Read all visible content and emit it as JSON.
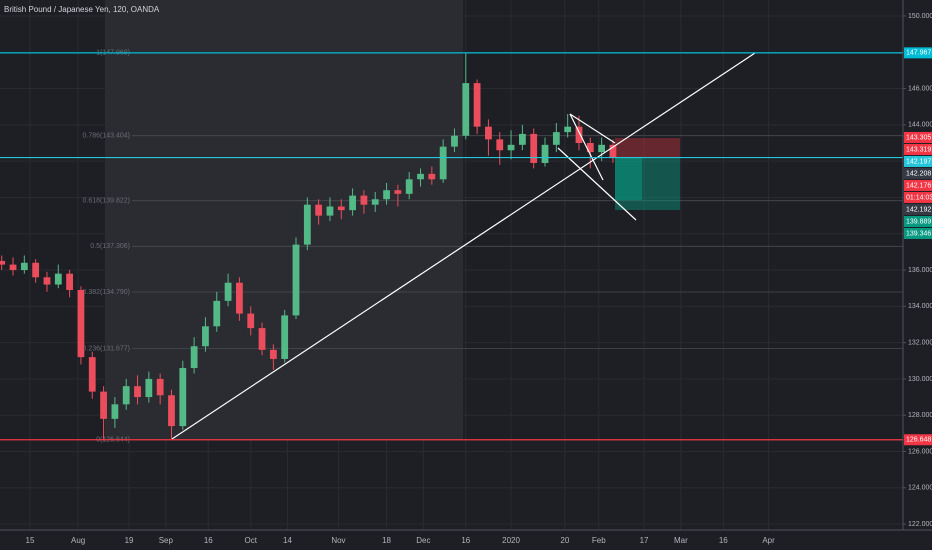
{
  "chart_data": {
    "type": "candlestick",
    "title": "British Pound / Japanese Yen, 120, OANDA",
    "x": [
      186,
      190,
      194,
      198,
      202,
      206,
      210,
      214,
      218,
      222,
      226,
      230,
      234,
      238,
      242,
      246,
      250,
      254,
      258,
      262,
      266,
      270,
      274,
      278,
      282,
      286,
      290,
      294,
      298,
      302,
      306,
      310,
      314,
      318,
      322,
      326,
      330,
      334,
      338,
      342,
      346,
      350,
      354,
      358,
      362,
      366,
      370,
      374,
      378,
      382,
      386,
      390,
      394,
      398,
      402
    ],
    "open": [
      136.5,
      136.3,
      136.0,
      136.4,
      135.6,
      135.2,
      135.8,
      134.9,
      131.2,
      129.3,
      127.8,
      128.6,
      129.6,
      129.0,
      130.0,
      129.1,
      127.4,
      130.6,
      131.8,
      132.9,
      134.3,
      135.3,
      133.6,
      132.8,
      131.6,
      131.1,
      133.5,
      137.4,
      139.6,
      139.0,
      139.5,
      139.3,
      140.1,
      139.6,
      139.9,
      140.4,
      140.2,
      141.0,
      141.3,
      141.0,
      142.8,
      143.4,
      146.3,
      143.9,
      143.2,
      142.6,
      142.9,
      143.5,
      141.9,
      142.9,
      143.6,
      143.9,
      143.0,
      142.5,
      142.9
    ],
    "high": [
      136.8,
      136.7,
      136.8,
      136.6,
      135.9,
      136.3,
      136.0,
      135.1,
      131.5,
      129.6,
      129.0,
      130.0,
      130.2,
      130.4,
      130.3,
      129.4,
      131.0,
      132.3,
      133.4,
      134.8,
      135.8,
      135.6,
      134.0,
      133.1,
      131.9,
      133.8,
      137.8,
      140.0,
      139.9,
      140.0,
      139.9,
      140.5,
      140.4,
      140.3,
      140.8,
      140.7,
      141.4,
      141.6,
      141.7,
      143.2,
      143.8,
      147.96,
      146.5,
      144.3,
      143.6,
      143.7,
      144.0,
      143.8,
      143.3,
      144.1,
      144.6,
      144.5,
      143.3,
      143.3,
      143.2
    ],
    "low": [
      136.0,
      135.7,
      135.8,
      135.3,
      134.8,
      135.0,
      134.5,
      130.8,
      128.9,
      126.6,
      127.3,
      128.3,
      128.6,
      128.7,
      128.6,
      126.7,
      127.2,
      130.3,
      131.5,
      132.6,
      134.0,
      133.2,
      132.4,
      131.3,
      130.5,
      130.9,
      133.3,
      137.1,
      138.5,
      138.7,
      138.8,
      139.0,
      139.1,
      139.2,
      139.6,
      139.5,
      139.9,
      140.6,
      140.7,
      140.8,
      142.5,
      143.2,
      143.5,
      142.3,
      141.8,
      142.1,
      142.6,
      141.6,
      141.7,
      142.5,
      143.3,
      142.6,
      141.6,
      142.0,
      141.9
    ],
    "close": [
      136.3,
      136.0,
      136.4,
      135.6,
      135.2,
      135.8,
      134.9,
      131.2,
      129.3,
      127.8,
      128.6,
      129.6,
      129.0,
      130.0,
      129.1,
      127.4,
      130.6,
      131.8,
      132.9,
      134.3,
      135.3,
      133.6,
      132.8,
      131.6,
      131.1,
      133.5,
      137.4,
      139.6,
      139.0,
      139.5,
      139.3,
      140.1,
      139.6,
      139.9,
      140.4,
      140.2,
      141.0,
      141.3,
      141.0,
      142.8,
      143.4,
      146.3,
      143.9,
      143.2,
      142.6,
      142.9,
      143.5,
      141.9,
      142.9,
      143.6,
      143.9,
      143.0,
      142.5,
      142.9,
      142.2
    ],
    "up_color": "#53b987",
    "down_color": "#eb4d5c",
    "xlim": [
      185.4,
      504.5
    ],
    "ylim": [
      121.95,
      150.88
    ],
    "grid": true,
    "xticks": [
      {
        "value": 196,
        "label": "15"
      },
      {
        "value": 213,
        "label": "Aug"
      },
      {
        "value": 231,
        "label": "19"
      },
      {
        "value": 244,
        "label": "Sep"
      },
      {
        "value": 259,
        "label": "16"
      },
      {
        "value": 274,
        "label": "Oct"
      },
      {
        "value": 287,
        "label": "14"
      },
      {
        "value": 305,
        "label": "Nov"
      },
      {
        "value": 322,
        "label": "18"
      },
      {
        "value": 335,
        "label": "Dec"
      },
      {
        "value": 350,
        "label": "16"
      },
      {
        "value": 366,
        "label": "2020"
      },
      {
        "value": 385,
        "label": "20"
      },
      {
        "value": 397,
        "label": "Feb"
      },
      {
        "value": 413,
        "label": "17"
      },
      {
        "value": 426,
        "label": "Mar"
      },
      {
        "value": 441,
        "label": "16"
      },
      {
        "value": 457,
        "label": "Apr"
      }
    ],
    "yticks": [
      {
        "value": 122,
        "label": "122.000"
      },
      {
        "value": 124,
        "label": "124.000"
      },
      {
        "value": 126,
        "label": "126.000"
      },
      {
        "value": 128,
        "label": "128.000"
      },
      {
        "value": 130,
        "label": "130.000"
      },
      {
        "value": 132,
        "label": "132.000"
      },
      {
        "value": 134,
        "label": "134.000"
      },
      {
        "value": 136,
        "label": "136.000"
      },
      {
        "value": 138,
        "label": "138.000"
      },
      {
        "value": 140,
        "label": "140.000"
      },
      {
        "value": 142,
        "label": "142.000"
      },
      {
        "value": 144,
        "label": "144.000"
      },
      {
        "value": 146,
        "label": "146.000"
      },
      {
        "value": 148,
        "label": "148.000"
      },
      {
        "value": 150,
        "label": "150.000"
      }
    ],
    "fib_levels": [
      {
        "value": 147.969,
        "label": "1(147.969)"
      },
      {
        "value": 143.404,
        "label": "0.786(143.404)"
      },
      {
        "value": 139.822,
        "label": "0.618(139.822)"
      },
      {
        "value": 137.306,
        "label": "0.5(137.306)"
      },
      {
        "value": 134.79,
        "label": "0.382(134.790)"
      },
      {
        "value": 131.677,
        "label": "0.236(131.677)"
      },
      {
        "value": 126.644,
        "label": "0(126.644)"
      }
    ],
    "horizontal_lines": [
      {
        "value": 147.967,
        "color": "#00bcd4"
      },
      {
        "value": 142.197,
        "color": "#26c6da"
      },
      {
        "value": 126.648,
        "color": "#f23645"
      }
    ],
    "price_labels": [
      {
        "value": 147.967,
        "label": "147.967",
        "color": "#00bcd4"
      },
      {
        "value": 143.305,
        "label": "143.305",
        "color": "#f23645"
      },
      {
        "value": 143.319,
        "label": "143.319",
        "color": "#f23645"
      },
      {
        "value": 142.197,
        "label": "142.197",
        "color": "#26c6da"
      },
      {
        "value": 142.208,
        "label": "142.208",
        "color": "#363a45"
      },
      {
        "value": 142.176,
        "label": "142.176",
        "color": "#f23645"
      },
      {
        "value": 142.192,
        "label": "142.192",
        "color": "#363a45"
      },
      {
        "value": 139.889,
        "label": "139.889",
        "color": "#089981"
      },
      {
        "value": 139.346,
        "label": "139.346",
        "color": "#089981"
      },
      {
        "value": 126.648,
        "label": "126.648",
        "color": "#f23645"
      }
    ],
    "countdown": "01:14:03"
  }
}
